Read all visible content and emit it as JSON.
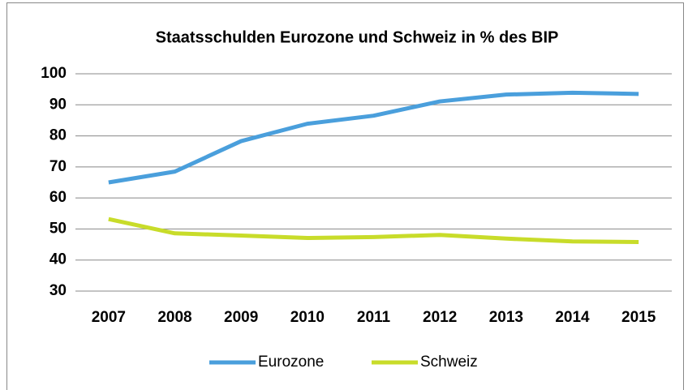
{
  "chart_data": {
    "type": "line",
    "title": "Staatsschulden Eurozone und Schweiz in % des BIP",
    "categories": [
      "2007",
      "2008",
      "2009",
      "2010",
      "2011",
      "2012",
      "2013",
      "2014",
      "2015"
    ],
    "series": [
      {
        "name": "Eurozone",
        "color": "#4a9fdc",
        "values": [
          65,
          68.5,
          78.3,
          83.9,
          86.5,
          91.1,
          93.3,
          93.9,
          93.5
        ]
      },
      {
        "name": "Schweiz",
        "color": "#c8dc2a",
        "values": [
          53.2,
          48.6,
          47.9,
          47.1,
          47.4,
          48.1,
          46.9,
          46.0,
          45.8
        ]
      }
    ],
    "ylim": [
      30,
      100
    ],
    "yticks": [
      30,
      40,
      50,
      60,
      70,
      80,
      90,
      100
    ],
    "grid": true,
    "legend": "bottom"
  }
}
